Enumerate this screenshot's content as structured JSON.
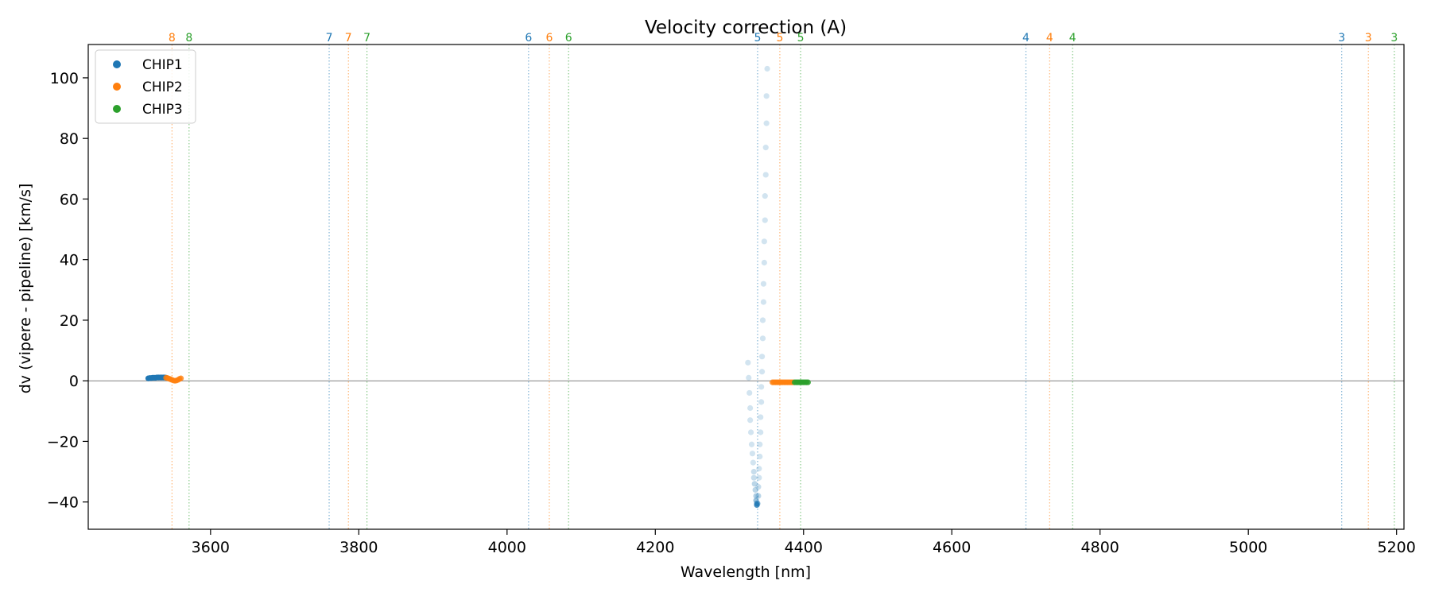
{
  "chart_data": {
    "type": "scatter",
    "title": "Velocity correction (A)",
    "xlabel": "Wavelength [nm]",
    "ylabel": "dv (vipere - pipeline) [km/s]",
    "xlim": [
      3435,
      5210
    ],
    "ylim": [
      -49,
      111
    ],
    "x_ticks": [
      3600,
      3800,
      4000,
      4200,
      4400,
      4600,
      4800,
      5000,
      5200
    ],
    "y_ticks": [
      -40,
      -20,
      0,
      20,
      40,
      60,
      80,
      100
    ],
    "grid": false,
    "zero_line": 0,
    "legend_position": "top-left",
    "series": [
      {
        "name": "CHIP1",
        "color": "#1f77b4",
        "points": [
          [
            3516,
            0.8,
            1
          ],
          [
            3518,
            0.9,
            1
          ],
          [
            3520,
            0.9,
            1
          ],
          [
            3522,
            1.0,
            1
          ],
          [
            3524,
            1.0,
            1
          ],
          [
            3526,
            1.0,
            1
          ],
          [
            3528,
            1.1,
            1
          ],
          [
            3530,
            1.1,
            1
          ],
          [
            3532,
            1.1,
            1
          ],
          [
            3534,
            1.1,
            1
          ],
          [
            3536,
            1.1,
            1
          ],
          [
            3538,
            1.1,
            1
          ],
          [
            3540,
            1.0,
            1
          ],
          [
            4325,
            6,
            0.2
          ],
          [
            4326,
            1,
            0.2
          ],
          [
            4327,
            -4,
            0.2
          ],
          [
            4328,
            -9,
            0.2
          ],
          [
            4328,
            -13,
            0.2
          ],
          [
            4329,
            -17,
            0.2
          ],
          [
            4330,
            -21,
            0.2
          ],
          [
            4331,
            -24,
            0.2
          ],
          [
            4332,
            -27,
            0.2
          ],
          [
            4333,
            -30,
            0.25
          ],
          [
            4333,
            -32,
            0.25
          ],
          [
            4334,
            -34,
            0.3
          ],
          [
            4335,
            -36,
            0.3
          ],
          [
            4336,
            -38,
            0.35
          ],
          [
            4336,
            -39.5,
            0.45
          ],
          [
            4337,
            -40.5,
            0.6
          ],
          [
            4337,
            -41,
            0.8
          ],
          [
            4338,
            -40.5,
            0.5
          ],
          [
            4339,
            -38,
            0.3
          ],
          [
            4339,
            -35,
            0.25
          ],
          [
            4340,
            -32,
            0.2
          ],
          [
            4340,
            -29,
            0.2
          ],
          [
            4341,
            -25,
            0.2
          ],
          [
            4341,
            -21,
            0.2
          ],
          [
            4342,
            -17,
            0.2
          ],
          [
            4342,
            -12,
            0.2
          ],
          [
            4343,
            -7,
            0.2
          ],
          [
            4343,
            -2,
            0.2
          ],
          [
            4344,
            3,
            0.2
          ],
          [
            4344,
            8,
            0.2
          ],
          [
            4345,
            14,
            0.2
          ],
          [
            4345,
            20,
            0.2
          ],
          [
            4346,
            26,
            0.2
          ],
          [
            4346,
            32,
            0.2
          ],
          [
            4347,
            39,
            0.2
          ],
          [
            4347,
            46,
            0.2
          ],
          [
            4348,
            53,
            0.2
          ],
          [
            4348,
            61,
            0.2
          ],
          [
            4349,
            68,
            0.2
          ],
          [
            4349,
            77,
            0.2
          ],
          [
            4350,
            85,
            0.2
          ],
          [
            4350,
            94,
            0.2
          ],
          [
            4351,
            103,
            0.2
          ]
        ]
      },
      {
        "name": "CHIP2",
        "color": "#ff7f0e",
        "points": [
          [
            3540,
            1.0,
            0.8
          ],
          [
            3542,
            0.9,
            0.8
          ],
          [
            3544,
            0.7,
            0.8
          ],
          [
            3546,
            0.5,
            0.8
          ],
          [
            3548,
            0.3,
            0.8
          ],
          [
            3550,
            0.1,
            0.8
          ],
          [
            3552,
            0.0,
            0.8
          ],
          [
            3554,
            0.1,
            0.8
          ],
          [
            3556,
            0.3,
            0.8
          ],
          [
            3558,
            0.6,
            0.8
          ],
          [
            3560,
            0.8,
            0.8
          ],
          [
            4358,
            -0.5,
            0.8
          ],
          [
            4360,
            -0.5,
            0.8
          ],
          [
            4362,
            -0.5,
            0.8
          ],
          [
            4364,
            -0.5,
            0.8
          ],
          [
            4366,
            -0.5,
            0.8
          ],
          [
            4368,
            -0.5,
            0.8
          ],
          [
            4370,
            -0.5,
            0.8
          ],
          [
            4372,
            -0.5,
            0.8
          ],
          [
            4374,
            -0.5,
            0.8
          ],
          [
            4376,
            -0.5,
            0.8
          ],
          [
            4378,
            -0.5,
            0.8
          ],
          [
            4380,
            -0.5,
            0.8
          ],
          [
            4382,
            -0.5,
            0.8
          ],
          [
            4384,
            -0.5,
            0.8
          ],
          [
            4386,
            -0.5,
            0.8
          ]
        ]
      },
      {
        "name": "CHIP3",
        "color": "#2ca02c",
        "points": [
          [
            4388,
            -0.5,
            0.85
          ],
          [
            4390,
            -0.5,
            0.85
          ],
          [
            4392,
            -0.5,
            0.85
          ],
          [
            4394,
            -0.5,
            0.85
          ],
          [
            4396,
            -0.5,
            0.85
          ],
          [
            4398,
            -0.5,
            0.85
          ],
          [
            4400,
            -0.5,
            0.85
          ],
          [
            4402,
            -0.5,
            0.85
          ],
          [
            4404,
            -0.5,
            0.85
          ],
          [
            4406,
            -0.5,
            0.85
          ]
        ]
      }
    ],
    "order_markers": [
      {
        "chip": "CHIP1",
        "x": 3548,
        "label": "8",
        "color": "#ff7f0e"
      },
      {
        "chip": "CHIP2",
        "x": 3571,
        "label": "8",
        "color": "#2ca02c"
      },
      {
        "chip": "CHIP1",
        "x": 3760,
        "label": "7",
        "color": "#1f77b4"
      },
      {
        "chip": "CHIP2",
        "x": 3786,
        "label": "7",
        "color": "#ff7f0e"
      },
      {
        "chip": "CHIP3",
        "x": 3811,
        "label": "7",
        "color": "#2ca02c"
      },
      {
        "chip": "CHIP1",
        "x": 4029,
        "label": "6",
        "color": "#1f77b4"
      },
      {
        "chip": "CHIP2",
        "x": 4057,
        "label": "6",
        "color": "#ff7f0e"
      },
      {
        "chip": "CHIP3",
        "x": 4083,
        "label": "6",
        "color": "#2ca02c"
      },
      {
        "chip": "CHIP1",
        "x": 4338,
        "label": "5",
        "color": "#1f77b4"
      },
      {
        "chip": "CHIP2",
        "x": 4368,
        "label": "5",
        "color": "#ff7f0e"
      },
      {
        "chip": "CHIP3",
        "x": 4396,
        "label": "5",
        "color": "#2ca02c"
      },
      {
        "chip": "CHIP1",
        "x": 4700,
        "label": "4",
        "color": "#1f77b4"
      },
      {
        "chip": "CHIP2",
        "x": 4732,
        "label": "4",
        "color": "#ff7f0e"
      },
      {
        "chip": "CHIP3",
        "x": 4763,
        "label": "4",
        "color": "#2ca02c"
      },
      {
        "chip": "CHIP1",
        "x": 5126,
        "label": "3",
        "color": "#1f77b4"
      },
      {
        "chip": "CHIP2",
        "x": 5162,
        "label": "3",
        "color": "#ff7f0e"
      },
      {
        "chip": "CHIP3",
        "x": 5197,
        "label": "3",
        "color": "#2ca02c"
      }
    ]
  }
}
